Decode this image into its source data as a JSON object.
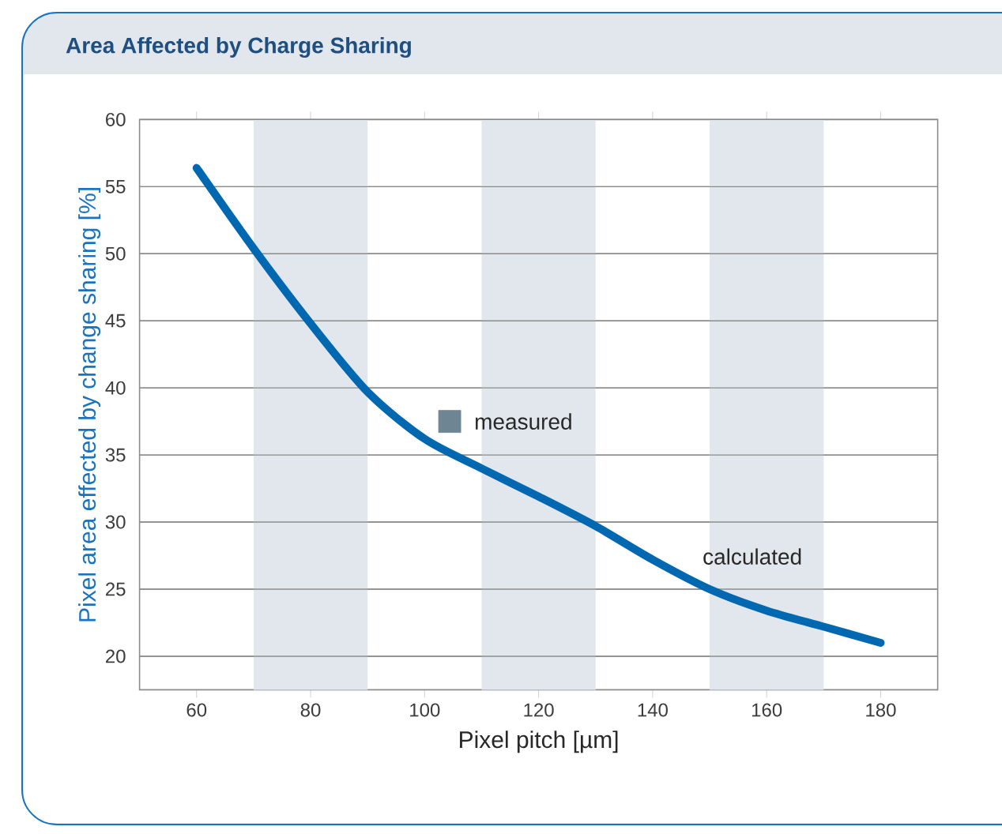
{
  "chart_data": {
    "type": "line",
    "title": "Area Affected by Charge Sharing",
    "xlabel": "Pixel pitch [µm]",
    "ylabel": "Pixel area effected by change sharing [%]",
    "x": [
      60,
      70,
      80,
      90,
      100,
      110,
      120,
      130,
      140,
      150,
      160,
      170,
      180
    ],
    "series": [
      {
        "name": "calculated",
        "color": "#0067b1",
        "values": [
          56.4,
          50.4,
          44.8,
          39.7,
          36.2,
          34.0,
          31.9,
          29.7,
          27.2,
          25.0,
          23.4,
          22.2,
          21.0
        ]
      },
      {
        "name": "measured",
        "type": "scatter",
        "marker": "square",
        "color": "#6e8593",
        "x": [
          104.4
        ],
        "values": [
          37.5
        ]
      }
    ],
    "xlim": [
      50,
      190
    ],
    "ylim": [
      17.5,
      60
    ],
    "xticks": [
      60,
      80,
      100,
      120,
      140,
      160,
      180
    ],
    "yticks": [
      20,
      25,
      30,
      35,
      40,
      45,
      50,
      55,
      60
    ],
    "grid": "y",
    "bands": [
      {
        "axis": "x",
        "from": 70,
        "to": 90,
        "color": "#e1e7ec"
      },
      {
        "axis": "x",
        "from": 110,
        "to": 130,
        "color": "#e1e7ec"
      },
      {
        "axis": "x",
        "from": 150,
        "to": 170,
        "color": "#e1e7ec"
      }
    ]
  }
}
